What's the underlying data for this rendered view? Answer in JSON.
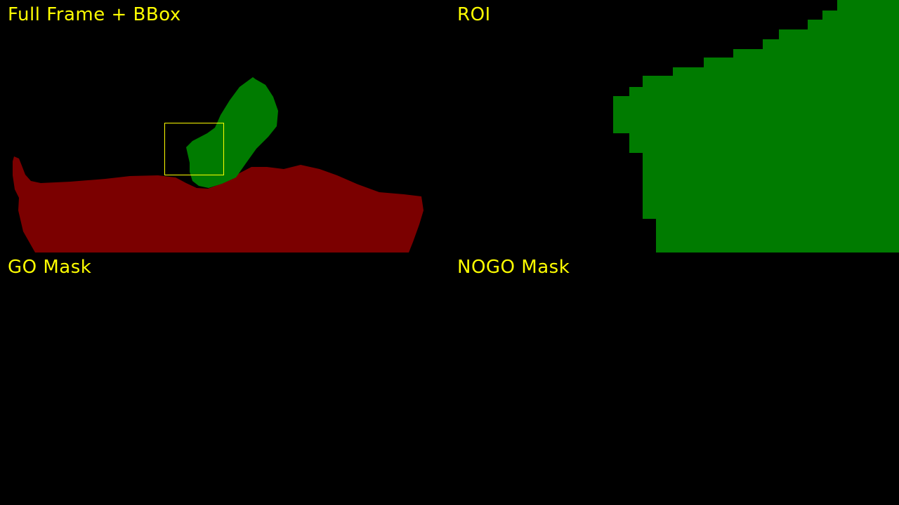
{
  "colors": {
    "background": "#000000",
    "label_text": "#ffff00",
    "nogo_region": "#7b0000",
    "go_region": "#007b00",
    "bbox_outline": "#ffff00"
  },
  "panels": {
    "full_frame": {
      "label": "Full Frame + BBox"
    },
    "roi": {
      "label": "ROI"
    },
    "go_mask": {
      "label": "GO Mask"
    },
    "nogo_mask": {
      "label": "NOGO Mask"
    }
  }
}
